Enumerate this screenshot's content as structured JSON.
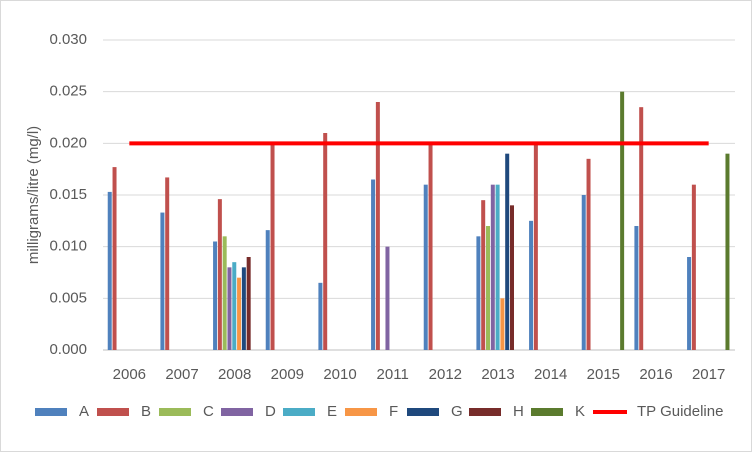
{
  "chart_data": {
    "type": "bar",
    "y_label": "milligrams/litre (mg/l)",
    "categories": [
      "2006",
      "2007",
      "2008",
      "2009",
      "2010",
      "2011",
      "2012",
      "2013",
      "2014",
      "2015",
      "2016",
      "2017"
    ],
    "series": [
      {
        "name": "A",
        "color": "#4f81bd",
        "values": [
          0.0153,
          0.0133,
          0.0105,
          0.0116,
          0.0065,
          0.0165,
          0.016,
          0.011,
          0.0125,
          0.015,
          0.012,
          0.009
        ]
      },
      {
        "name": "B",
        "color": "#c0504d",
        "values": [
          0.0177,
          0.0167,
          0.0146,
          0.02,
          0.021,
          0.024,
          0.02,
          0.0145,
          0.02,
          0.0185,
          0.0235,
          0.016
        ]
      },
      {
        "name": "C",
        "color": "#9bbb59",
        "values": [
          null,
          null,
          0.011,
          null,
          null,
          null,
          null,
          0.012,
          null,
          null,
          null,
          null
        ]
      },
      {
        "name": "D",
        "color": "#8064a2",
        "values": [
          null,
          null,
          0.008,
          null,
          null,
          0.01,
          null,
          0.016,
          null,
          null,
          null,
          null
        ]
      },
      {
        "name": "E",
        "color": "#4bacc6",
        "values": [
          null,
          null,
          0.0085,
          null,
          null,
          null,
          null,
          0.016,
          null,
          null,
          null,
          null
        ]
      },
      {
        "name": "F",
        "color": "#f79646",
        "values": [
          null,
          null,
          0.007,
          null,
          null,
          null,
          null,
          0.005,
          null,
          null,
          null,
          null
        ]
      },
      {
        "name": "G",
        "color": "#1f497d",
        "values": [
          null,
          null,
          0.008,
          null,
          null,
          null,
          null,
          0.019,
          null,
          null,
          null,
          null
        ]
      },
      {
        "name": "H",
        "color": "#772c2a",
        "values": [
          null,
          null,
          0.009,
          null,
          null,
          null,
          null,
          0.014,
          null,
          null,
          null,
          null
        ]
      },
      {
        "name": "K",
        "color": "#5b7b2e",
        "values": [
          null,
          null,
          null,
          null,
          null,
          null,
          null,
          null,
          null,
          0.025,
          null,
          0.019
        ]
      },
      {
        "name": "TP Guideline",
        "type": "line",
        "color": "#ff0000",
        "values": [
          0.02,
          0.02,
          0.02,
          0.02,
          0.02,
          0.02,
          0.02,
          0.02,
          0.02,
          0.02,
          0.02,
          0.02
        ]
      }
    ],
    "ylim": [
      0,
      0.03
    ],
    "yticks": [
      {
        "value": 0,
        "label": "0.000"
      },
      {
        "value": 0.005,
        "label": "0.005"
      },
      {
        "value": 0.01,
        "label": "0.010"
      },
      {
        "value": 0.015,
        "label": "0.015"
      },
      {
        "value": 0.02,
        "label": "0.020"
      },
      {
        "value": 0.025,
        "label": "0.025"
      },
      {
        "value": 0.03,
        "label": "0.030"
      }
    ],
    "grid": true,
    "legend": "bottom"
  }
}
